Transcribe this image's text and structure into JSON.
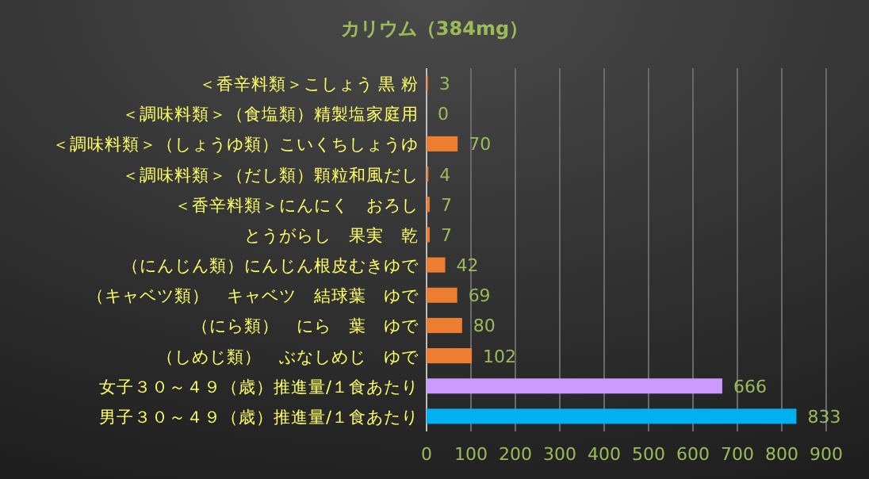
{
  "chart_data": {
    "type": "bar",
    "orientation": "horizontal",
    "title": "カリウム（384mg）",
    "categories": [
      "＜香辛料類＞こしょう 黒 粉",
      "＜調味料類＞（食塩類）精製塩家庭用",
      "＜調味料類＞（しょうゆ類）こいくちしょうゆ",
      "＜調味料類＞（だし類）顆粒和風だし",
      "＜香辛料類＞にんにく　おろし",
      "とうがらし　果実　乾",
      "（にんじん類）にんじん根皮むきゆで",
      "（キャベツ類）　キャベツ　結球葉　ゆで",
      "（にら類）　にら　葉　ゆで",
      "（しめじ類）　ぶなしめじ　ゆで",
      "女子３０～４９（歳）推進量/１食あたり",
      "男子３０～４９（歳）推進量/１食あたり"
    ],
    "values": [
      3,
      0,
      70,
      4,
      7,
      7,
      42,
      69,
      80,
      102,
      666,
      833
    ],
    "colors": [
      "#ed7d31",
      "#ed7d31",
      "#ed7d31",
      "#ed7d31",
      "#ed7d31",
      "#ed7d31",
      "#ed7d31",
      "#ed7d31",
      "#ed7d31",
      "#ed7d31",
      "#cc99ff",
      "#00b0f0"
    ],
    "xlim": [
      0,
      900
    ],
    "xticks": [
      0,
      100,
      200,
      300,
      400,
      500,
      600,
      700,
      800,
      900
    ],
    "grid": "x",
    "data_labels": true
  }
}
